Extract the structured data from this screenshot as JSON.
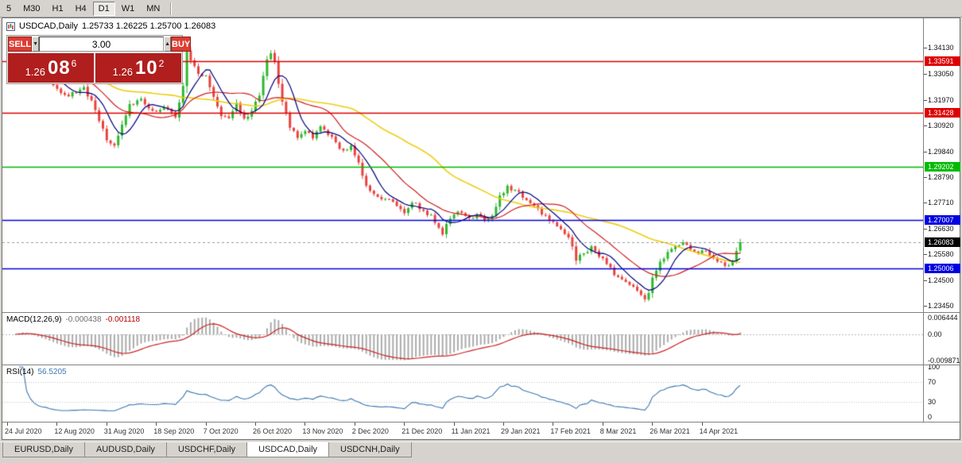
{
  "toolbar": {
    "timeframes": [
      {
        "label": "5",
        "active": false
      },
      {
        "label": "M30",
        "active": false
      },
      {
        "label": "H1",
        "active": false
      },
      {
        "label": "H4",
        "active": false
      },
      {
        "label": "D1",
        "active": true
      },
      {
        "label": "W1",
        "active": false
      },
      {
        "label": "MN",
        "active": false
      }
    ]
  },
  "chart": {
    "title": "USDCAD,Daily",
    "ohlc": "1.25733 1.26225 1.25700 1.26083",
    "trade_panel": {
      "sell_label": "SELL",
      "buy_label": "BUY",
      "lot_size": "3.00",
      "spin_down_glyph": "▼",
      "spin_up_glyph": "▲",
      "sell_price": {
        "big": "1.26",
        "pips": "08",
        "pipette": "6"
      },
      "buy_price": {
        "big": "1.26",
        "pips": "10",
        "pipette": "2"
      },
      "button_color": "#de3d32",
      "box_color": "#b01e1e"
    }
  },
  "indicators": {
    "macd": {
      "label": "MACD(12,26,9)",
      "value_main": "-0.000438",
      "value_signal": "-0.001118",
      "axis_labels": [
        0.006444,
        0.0,
        -0.009871
      ]
    },
    "rsi": {
      "label": "RSI(14)",
      "value": "56.5205",
      "axis_labels": [
        100,
        70,
        30,
        0
      ]
    }
  },
  "tabs": [
    {
      "label": "EURUSD,Daily",
      "active": false
    },
    {
      "label": "AUDUSD,Daily",
      "active": false
    },
    {
      "label": "USDCHF,Daily",
      "active": false
    },
    {
      "label": "USDCAD,Daily",
      "active": true
    },
    {
      "label": "USDCNH,Daily",
      "active": false
    }
  ],
  "chart_data": {
    "type": "candlestick",
    "symbol": "USDCAD",
    "period": "Daily",
    "ohlc_display": {
      "open": 1.25733,
      "high": 1.26225,
      "low": 1.257,
      "close": 1.26083
    },
    "bid": 1.26086,
    "ask": 1.26102,
    "y_range": [
      1.2319,
      1.3535
    ],
    "axis_ticks": [
      1.3413,
      1.3305,
      1.3197,
      1.3092,
      1.2984,
      1.2879,
      1.2771,
      1.2663,
      1.2558,
      1.245,
      1.2345
    ],
    "levels": [
      {
        "price": 1.33591,
        "label": "1.33591",
        "color": "#dd0000",
        "type": "resistance"
      },
      {
        "price": 1.31428,
        "label": "1.31428",
        "color": "#dd0000",
        "type": "resistance"
      },
      {
        "price": 1.29202,
        "label": "1.29202",
        "color": "#00bb00",
        "type": "level"
      },
      {
        "price": 1.27007,
        "label": "1.27007",
        "color": "#0000e0",
        "type": "level"
      },
      {
        "price": 1.25006,
        "label": "1.25006",
        "color": "#0000e0",
        "type": "support"
      }
    ],
    "current_price": {
      "price": 1.26083,
      "label": "1.26083",
      "color": "#000000"
    },
    "candle_count": 193,
    "candle_spacing": 4.8,
    "x_labels": [
      "24 Jul 2020",
      "12 Aug 2020",
      "31 Aug 2020",
      "18 Sep 2020",
      "7 Oct 2020",
      "26 Oct 2020",
      "13 Nov 2020",
      "2 Dec 2020",
      "21 Dec 2020",
      "11 Jan 2021",
      "29 Jan 2021",
      "17 Feb 2021",
      "8 Mar 2021",
      "26 Mar 2021",
      "14 Apr 2021"
    ],
    "x_label_interval": 13,
    "keyframes": [
      [
        0,
        1.339
      ],
      [
        4,
        1.3418
      ],
      [
        8,
        1.3322
      ],
      [
        12,
        1.3258
      ],
      [
        16,
        1.3212
      ],
      [
        20,
        1.325
      ],
      [
        23,
        1.3155
      ],
      [
        26,
        1.303
      ],
      [
        28,
        1.3008
      ],
      [
        30,
        1.3095
      ],
      [
        32,
        1.318
      ],
      [
        35,
        1.3202
      ],
      [
        38,
        1.3152
      ],
      [
        41,
        1.3168
      ],
      [
        44,
        1.3125
      ],
      [
        46,
        1.3255
      ],
      [
        47,
        1.34
      ],
      [
        48,
        1.336
      ],
      [
        50,
        1.3305
      ],
      [
        52,
        1.3298
      ],
      [
        54,
        1.321
      ],
      [
        56,
        1.313
      ],
      [
        58,
        1.3122
      ],
      [
        60,
        1.3185
      ],
      [
        62,
        1.312
      ],
      [
        64,
        1.3152
      ],
      [
        66,
        1.3215
      ],
      [
        68,
        1.3365
      ],
      [
        69,
        1.339
      ],
      [
        70,
        1.3355
      ],
      [
        72,
        1.319
      ],
      [
        74,
        1.3082
      ],
      [
        76,
        1.304
      ],
      [
        78,
        1.3068
      ],
      [
        80,
        1.3038
      ],
      [
        82,
        1.3088
      ],
      [
        84,
        1.3052
      ],
      [
        86,
        1.3022
      ],
      [
        88,
        1.2988
      ],
      [
        90,
        1.3008
      ],
      [
        92,
        1.2938
      ],
      [
        94,
        1.2842
      ],
      [
        96,
        1.2808
      ],
      [
        99,
        1.2788
      ],
      [
        102,
        1.2758
      ],
      [
        104,
        1.2728
      ],
      [
        106,
        1.2772
      ],
      [
        109,
        1.2738
      ],
      [
        111,
        1.2722
      ],
      [
        113,
        1.2668
      ],
      [
        114,
        1.264
      ],
      [
        116,
        1.2706
      ],
      [
        118,
        1.2735
      ],
      [
        121,
        1.2708
      ],
      [
        123,
        1.2725
      ],
      [
        125,
        1.2698
      ],
      [
        127,
        1.2718
      ],
      [
        129,
        1.2802
      ],
      [
        131,
        1.2842
      ],
      [
        133,
        1.2825
      ],
      [
        136,
        1.2782
      ],
      [
        139,
        1.2748
      ],
      [
        141,
        1.2718
      ],
      [
        143,
        1.2692
      ],
      [
        145,
        1.2662
      ],
      [
        147,
        1.2628
      ],
      [
        149,
        1.2532
      ],
      [
        151,
        1.2562
      ],
      [
        153,
        1.2592
      ],
      [
        155,
        1.2548
      ],
      [
        157,
        1.2518
      ],
      [
        159,
        1.2472
      ],
      [
        161,
        1.2455
      ],
      [
        163,
        1.2432
      ],
      [
        165,
        1.2408
      ],
      [
        167,
        1.2372
      ],
      [
        168,
        1.2398
      ],
      [
        169,
        1.2462
      ],
      [
        171,
        1.2528
      ],
      [
        173,
        1.2568
      ],
      [
        175,
        1.2592
      ],
      [
        177,
        1.2608
      ],
      [
        179,
        1.2578
      ],
      [
        181,
        1.2562
      ],
      [
        183,
        1.2572
      ],
      [
        185,
        1.2542
      ],
      [
        187,
        1.2526
      ],
      [
        189,
        1.2512
      ],
      [
        190,
        1.253
      ],
      [
        191,
        1.2572
      ],
      [
        192,
        1.26083
      ]
    ],
    "colors": {
      "bull": "#2eb82e",
      "bear": "#e8433f",
      "ma_fast": "#000080",
      "ma_mid": "#d02020",
      "ma_slow": "#efce10",
      "macd_hist": "#ababab",
      "macd_signal": "#cc2222",
      "rsi_line": "#3c78b4"
    },
    "ma_periods": {
      "fast": 7,
      "mid": 18,
      "slow": 45
    },
    "macd_params": [
      12,
      26,
      9
    ],
    "macd_scale": {
      "max_label": 0.006444,
      "min_label": -0.009871,
      "vmax": 0.0082,
      "vmin": -0.0115
    },
    "rsi_period": 14
  }
}
